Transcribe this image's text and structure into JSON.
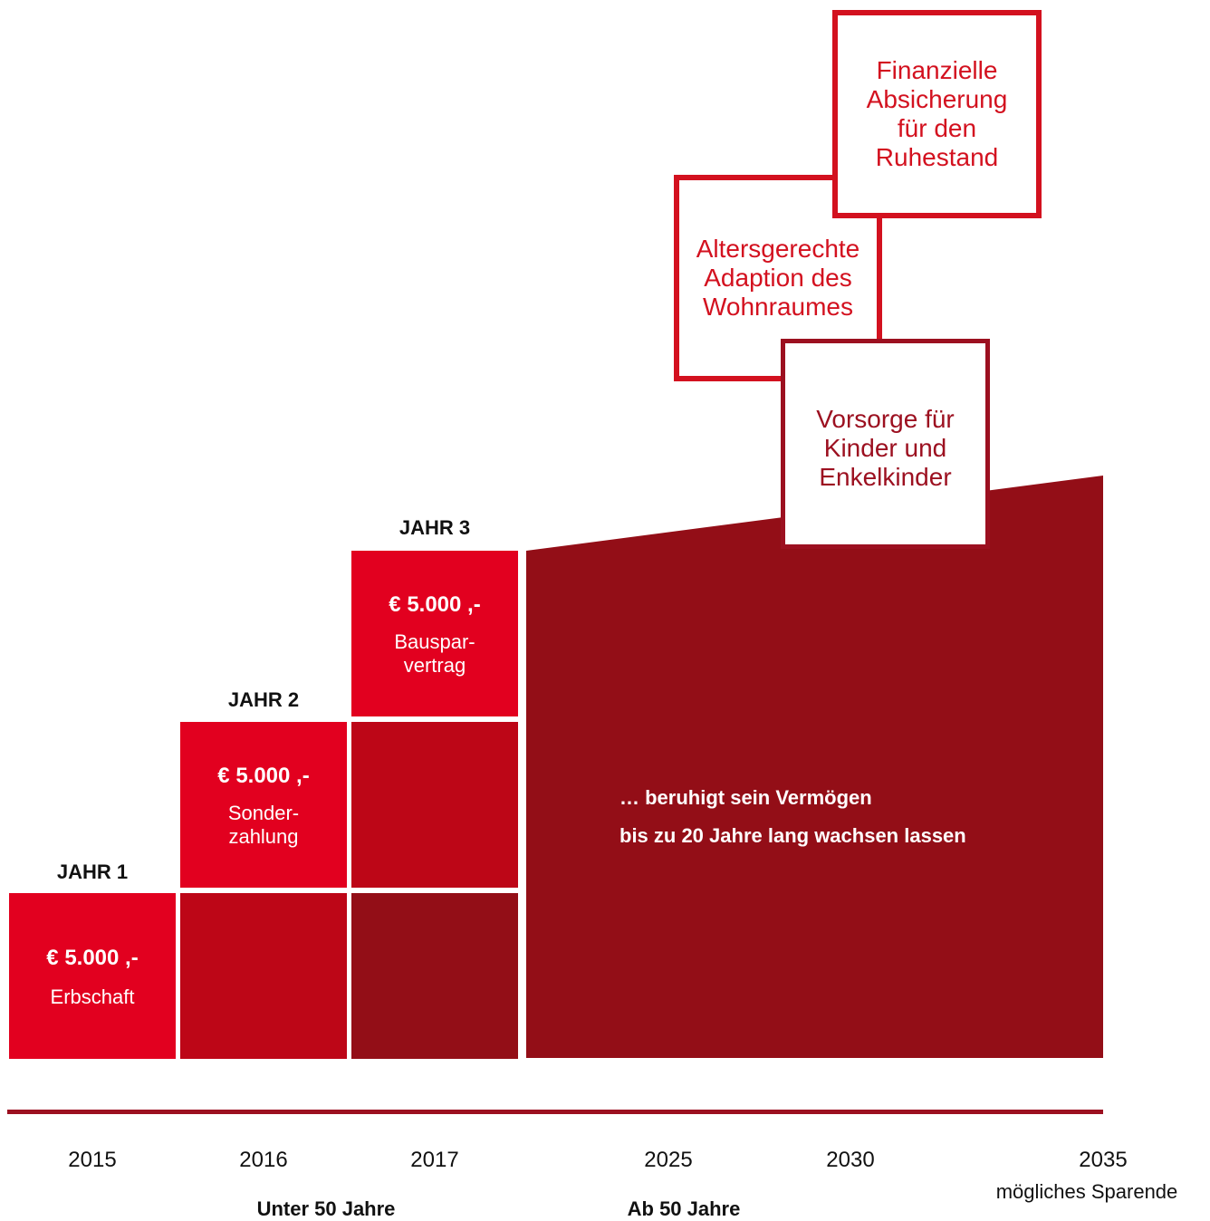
{
  "steps": [
    {
      "heading": "JAHR 1",
      "amount": "€ 5.000 ,-",
      "description": "Erbschaft"
    },
    {
      "heading": "JAHR 2",
      "amount": "€ 5.000 ,-",
      "description": "Sonder-\nzahlung"
    },
    {
      "heading": "JAHR 3",
      "amount": "€ 5.000 ,-",
      "description": "Bauspar-\nvertrag"
    }
  ],
  "growth": {
    "line1": "… beruhigt sein Vermögen",
    "line2": "bis zu 20 Jahre lang wachsen lassen"
  },
  "goals": {
    "retirement": "Finanzielle\nAbsicherung\nfür den\nRuhestand",
    "adaption": "Altersgerechte\nAdaption des\nWohnraumes",
    "provision": "Vorsorge für\nKinder und\nEnkelkinder"
  },
  "timeline": {
    "years": [
      "2015",
      "2016",
      "2017",
      "2025",
      "2030",
      "2035"
    ],
    "end_note": "mögliches Sparende",
    "group_under_50": "Unter 50 Jahre",
    "group_from_50": "Ab 50 Jahre"
  },
  "colors": {
    "bright_red": "#e2001f",
    "mid_red": "#bd0617",
    "dark_red": "#930e17",
    "outline_red": "#d3111f",
    "outline_dark_red": "#9c1020"
  }
}
